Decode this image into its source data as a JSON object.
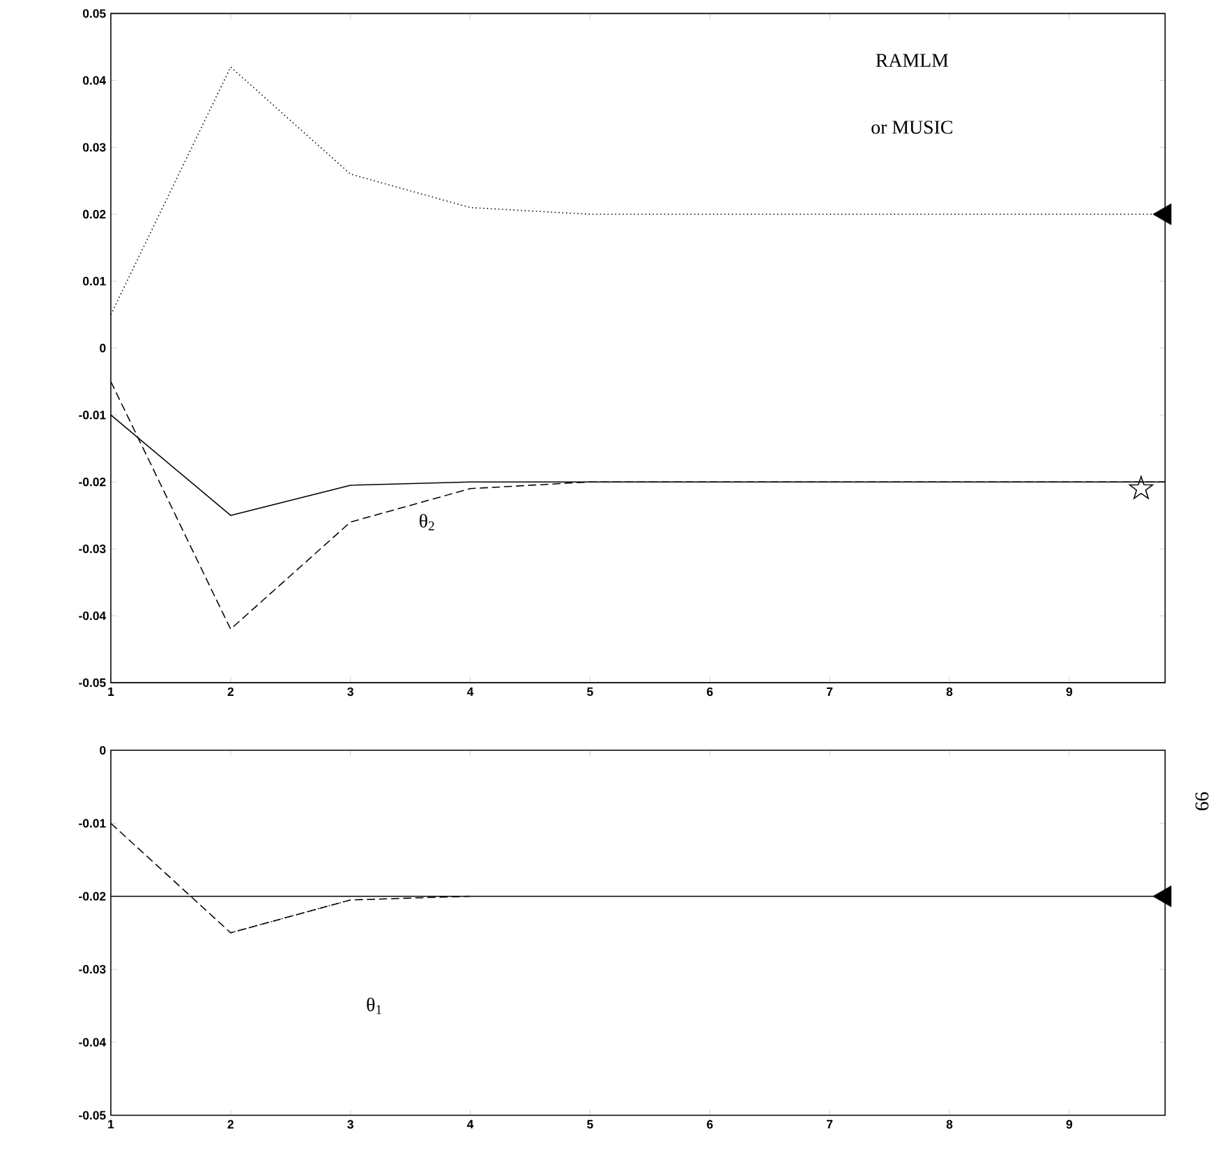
{
  "chart_data": [
    {
      "type": "line",
      "x": [
        1,
        2,
        3,
        4,
        5,
        6,
        7,
        8,
        9,
        9.8
      ],
      "xlim": [
        1,
        9.8
      ],
      "xticks": [
        1,
        2,
        3,
        4,
        5,
        6,
        7,
        8,
        9
      ],
      "ylim": [
        -0.05,
        0.05
      ],
      "yticks": [
        -0.05,
        -0.04,
        -0.03,
        -0.02,
        -0.01,
        0,
        0.01,
        0.02,
        0.03,
        0.04,
        0.05
      ],
      "grid": false,
      "series": [
        {
          "color": "#000000",
          "line_style": "dotted",
          "values": [
            0.005,
            0.042,
            0.026,
            0.021,
            0.02,
            0.02,
            0.02,
            0.02,
            0.02,
            0.02
          ]
        },
        {
          "color": "#000000",
          "line_style": "solid",
          "values": [
            -0.01,
            -0.025,
            -0.0205,
            -0.02,
            -0.02,
            -0.02,
            -0.02,
            -0.02,
            -0.02,
            -0.02
          ]
        },
        {
          "color": "#000000",
          "line_style": "dashed",
          "values": [
            -0.005,
            -0.042,
            -0.026,
            -0.021,
            -0.02,
            -0.02,
            -0.02,
            -0.02,
            -0.02,
            -0.02
          ]
        },
        {
          "type": "scatter",
          "color": "#000000",
          "marker": "triangle",
          "x": [
            9.8
          ],
          "values": [
            0.02
          ]
        },
        {
          "type": "scatter",
          "color": "#000000",
          "marker": "star",
          "x": [
            9.6
          ],
          "values": [
            -0.021
          ]
        }
      ],
      "annotations": [
        "RAMLM",
        "or MUSIC",
        "θ$_{2}$"
      ]
    },
    {
      "type": "line",
      "x": [
        1,
        2,
        3,
        4,
        5,
        6,
        7,
        8,
        9,
        9.8
      ],
      "xlim": [
        1,
        9.8
      ],
      "xticks": [
        1,
        2,
        3,
        4,
        5,
        6,
        7,
        8,
        9
      ],
      "ylim": [
        -0.05,
        0
      ],
      "yticks": [
        -0.05,
        -0.04,
        -0.03,
        -0.02,
        -0.01,
        0
      ],
      "grid": false,
      "series": [
        {
          "color": "#000000",
          "line_style": "solid",
          "values": [
            -0.02,
            -0.02,
            -0.02,
            -0.02,
            -0.02,
            -0.02,
            -0.02,
            -0.02,
            -0.02,
            -0.02
          ]
        },
        {
          "color": "#000000",
          "line_style": "dotted",
          "x": [
            2,
            3
          ],
          "values": [
            -0.025,
            -0.0205
          ]
        },
        {
          "color": "#000000",
          "line_style": "dashed",
          "x": [
            1,
            2,
            3,
            4
          ],
          "values": [
            -0.01,
            -0.025,
            -0.0205,
            -0.02
          ]
        },
        {
          "type": "scatter",
          "color": "#000000",
          "marker": "triangle",
          "x": [
            9.8
          ],
          "values": [
            -0.02
          ]
        }
      ],
      "annotations": [
        "θ$_{1}$",
        "66"
      ]
    }
  ]
}
